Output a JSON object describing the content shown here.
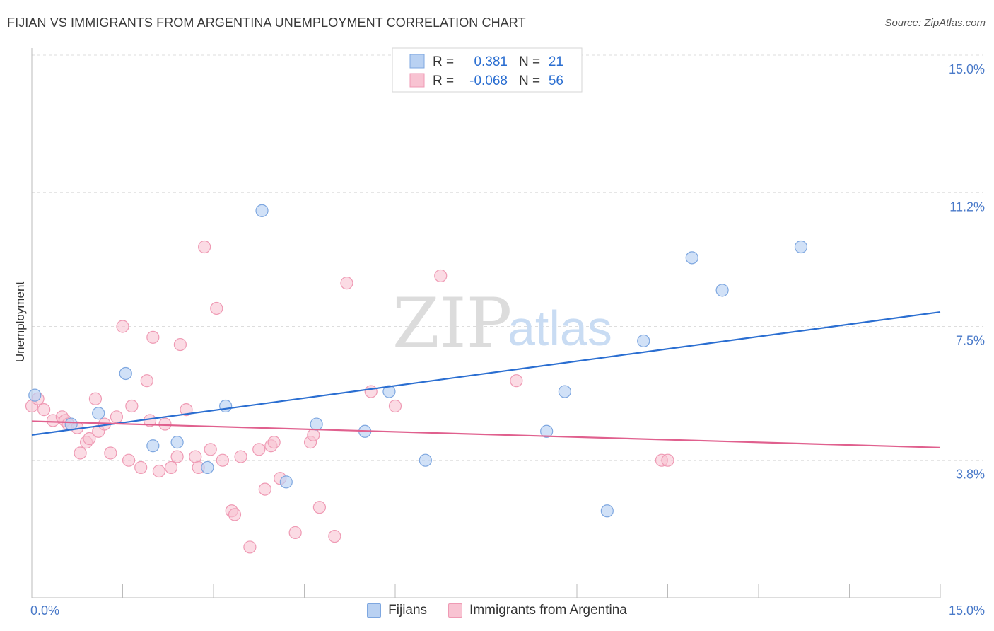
{
  "title": "FIJIAN VS IMMIGRANTS FROM ARGENTINA UNEMPLOYMENT CORRELATION CHART",
  "source": "Source: ZipAtlas.com",
  "watermark": {
    "zip": "ZIP",
    "atlas": "atlas"
  },
  "colors": {
    "blue_fill": "#b9d1f2",
    "blue_stroke": "#7ea7e0",
    "blue_line": "#2a6ed1",
    "pink_fill": "#f8c3d2",
    "pink_stroke": "#ef9ab4",
    "pink_line": "#e0608e",
    "tick_text": "#4a7ac9",
    "grid": "#dddddd"
  },
  "legend": {
    "r_label": "R =",
    "n_label": "N =",
    "rows": [
      {
        "r": "0.381",
        "n": "21"
      },
      {
        "r": "-0.068",
        "n": "56"
      }
    ]
  },
  "bottom_legend": [
    "Fijians",
    "Immigrants from Argentina"
  ],
  "chart_data": {
    "type": "scatter",
    "title": "FIJIAN VS IMMIGRANTS FROM ARGENTINA UNEMPLOYMENT CORRELATION CHART",
    "xlabel": "",
    "ylabel": "Unemployment",
    "xlim": [
      0,
      15
    ],
    "ylim": [
      0,
      15
    ],
    "x_tick_labels": [
      "0.0%",
      "15.0%"
    ],
    "y_ticks": [
      3.8,
      7.5,
      11.2,
      15.0
    ],
    "y_tick_labels": [
      "3.8%",
      "7.5%",
      "11.2%",
      "15.0%"
    ],
    "grid": true,
    "legend_position": "top-center",
    "series": [
      {
        "name": "Fijians",
        "r": 0.381,
        "n": 21,
        "trend": [
          [
            0,
            4.5
          ],
          [
            15,
            7.9
          ]
        ],
        "points": [
          [
            0.05,
            5.6
          ],
          [
            0.65,
            4.8
          ],
          [
            1.1,
            5.1
          ],
          [
            1.55,
            6.2
          ],
          [
            2.0,
            4.2
          ],
          [
            2.4,
            4.3
          ],
          [
            2.9,
            3.6
          ],
          [
            3.2,
            5.3
          ],
          [
            3.8,
            10.7
          ],
          [
            4.2,
            3.2
          ],
          [
            4.7,
            4.8
          ],
          [
            5.5,
            4.6
          ],
          [
            5.9,
            5.7
          ],
          [
            6.5,
            3.8
          ],
          [
            8.5,
            4.6
          ],
          [
            8.8,
            5.7
          ],
          [
            9.5,
            2.4
          ],
          [
            10.1,
            7.1
          ],
          [
            10.9,
            9.4
          ],
          [
            11.4,
            8.5
          ],
          [
            12.7,
            9.7
          ]
        ]
      },
      {
        "name": "Immigrants from Argentina",
        "r": -0.068,
        "n": 56,
        "trend": [
          [
            0,
            4.88
          ],
          [
            15,
            4.15
          ]
        ],
        "points": [
          [
            0.0,
            5.3
          ],
          [
            0.1,
            5.5
          ],
          [
            0.2,
            5.2
          ],
          [
            0.35,
            4.9
          ],
          [
            0.5,
            5.0
          ],
          [
            0.55,
            4.9
          ],
          [
            0.6,
            4.8
          ],
          [
            0.75,
            4.7
          ],
          [
            0.8,
            4.0
          ],
          [
            0.9,
            4.3
          ],
          [
            0.95,
            4.4
          ],
          [
            1.05,
            5.5
          ],
          [
            1.1,
            4.6
          ],
          [
            1.2,
            4.8
          ],
          [
            1.3,
            4.0
          ],
          [
            1.4,
            5.0
          ],
          [
            1.5,
            7.5
          ],
          [
            1.6,
            3.8
          ],
          [
            1.65,
            5.3
          ],
          [
            1.8,
            3.6
          ],
          [
            1.9,
            6.0
          ],
          [
            1.95,
            4.9
          ],
          [
            2.0,
            7.2
          ],
          [
            2.1,
            3.5
          ],
          [
            2.2,
            4.8
          ],
          [
            2.3,
            3.6
          ],
          [
            2.4,
            3.9
          ],
          [
            2.45,
            7.0
          ],
          [
            2.55,
            5.2
          ],
          [
            2.7,
            3.9
          ],
          [
            2.75,
            3.6
          ],
          [
            2.85,
            9.7
          ],
          [
            2.95,
            4.1
          ],
          [
            3.05,
            8.0
          ],
          [
            3.15,
            3.8
          ],
          [
            3.3,
            2.4
          ],
          [
            3.35,
            2.3
          ],
          [
            3.45,
            3.9
          ],
          [
            3.6,
            1.4
          ],
          [
            3.75,
            4.1
          ],
          [
            3.85,
            3.0
          ],
          [
            3.95,
            4.2
          ],
          [
            4.0,
            4.3
          ],
          [
            4.1,
            3.3
          ],
          [
            4.35,
            1.8
          ],
          [
            4.6,
            4.3
          ],
          [
            4.65,
            4.5
          ],
          [
            4.75,
            2.5
          ],
          [
            5.0,
            1.7
          ],
          [
            5.2,
            8.7
          ],
          [
            5.6,
            5.7
          ],
          [
            6.0,
            5.3
          ],
          [
            6.75,
            8.9
          ],
          [
            8.0,
            6.0
          ],
          [
            10.4,
            3.8
          ],
          [
            10.5,
            3.8
          ]
        ]
      }
    ]
  }
}
